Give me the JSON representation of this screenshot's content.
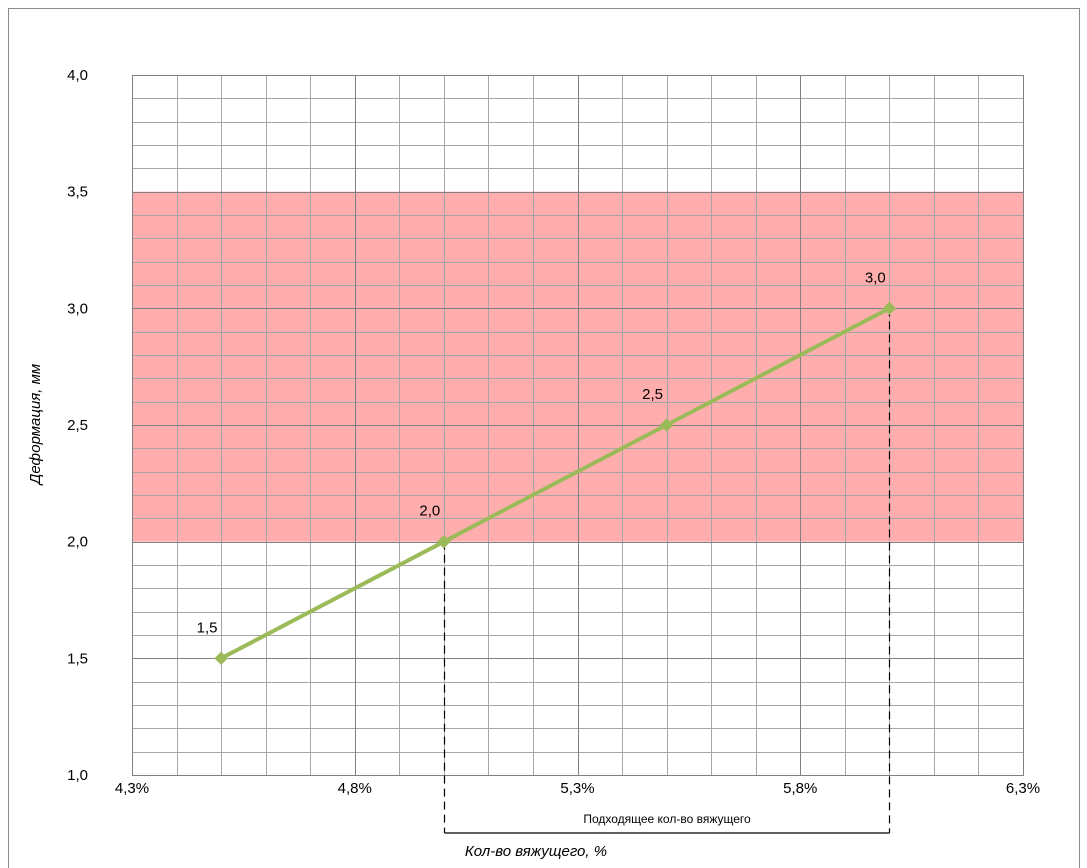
{
  "chart_data": {
    "type": "line",
    "x": [
      4.5,
      5.0,
      5.5,
      6.0
    ],
    "series": [
      {
        "values": [
          1.5,
          2.0,
          2.5,
          3.0
        ],
        "data_labels": [
          "1,5",
          "2,0",
          "2,5",
          "3,0"
        ]
      }
    ],
    "xlabel": "Кол-во вяжущего,  %",
    "ylabel": "Деформация, мм",
    "xlim": [
      4.3,
      6.3
    ],
    "ylim": [
      1.0,
      4.0
    ],
    "x_ticks": [
      4.3,
      4.8,
      5.3,
      5.8,
      6.3
    ],
    "x_tick_labels": [
      "4,3%",
      "4,8%",
      "5,3%",
      "5,8%",
      "6,3%"
    ],
    "y_ticks": [
      1.0,
      1.5,
      2.0,
      2.5,
      3.0,
      3.5,
      4.0
    ],
    "y_tick_labels": [
      "1,0",
      "1,5",
      "2,0",
      "2,5",
      "3,0",
      "3,5",
      "4,0"
    ],
    "grid": true,
    "shaded_band": {
      "y_from": 2.0,
      "y_to": 3.5,
      "color": "#ffadad"
    },
    "range_bracket": {
      "x_from": 5.0,
      "x_to": 6.0,
      "label": "Подходящее кол-во вяжущего"
    },
    "colors": {
      "line": "#9bbb59",
      "major_grid": "#808080",
      "minor_grid": "#a6a6a6"
    }
  }
}
